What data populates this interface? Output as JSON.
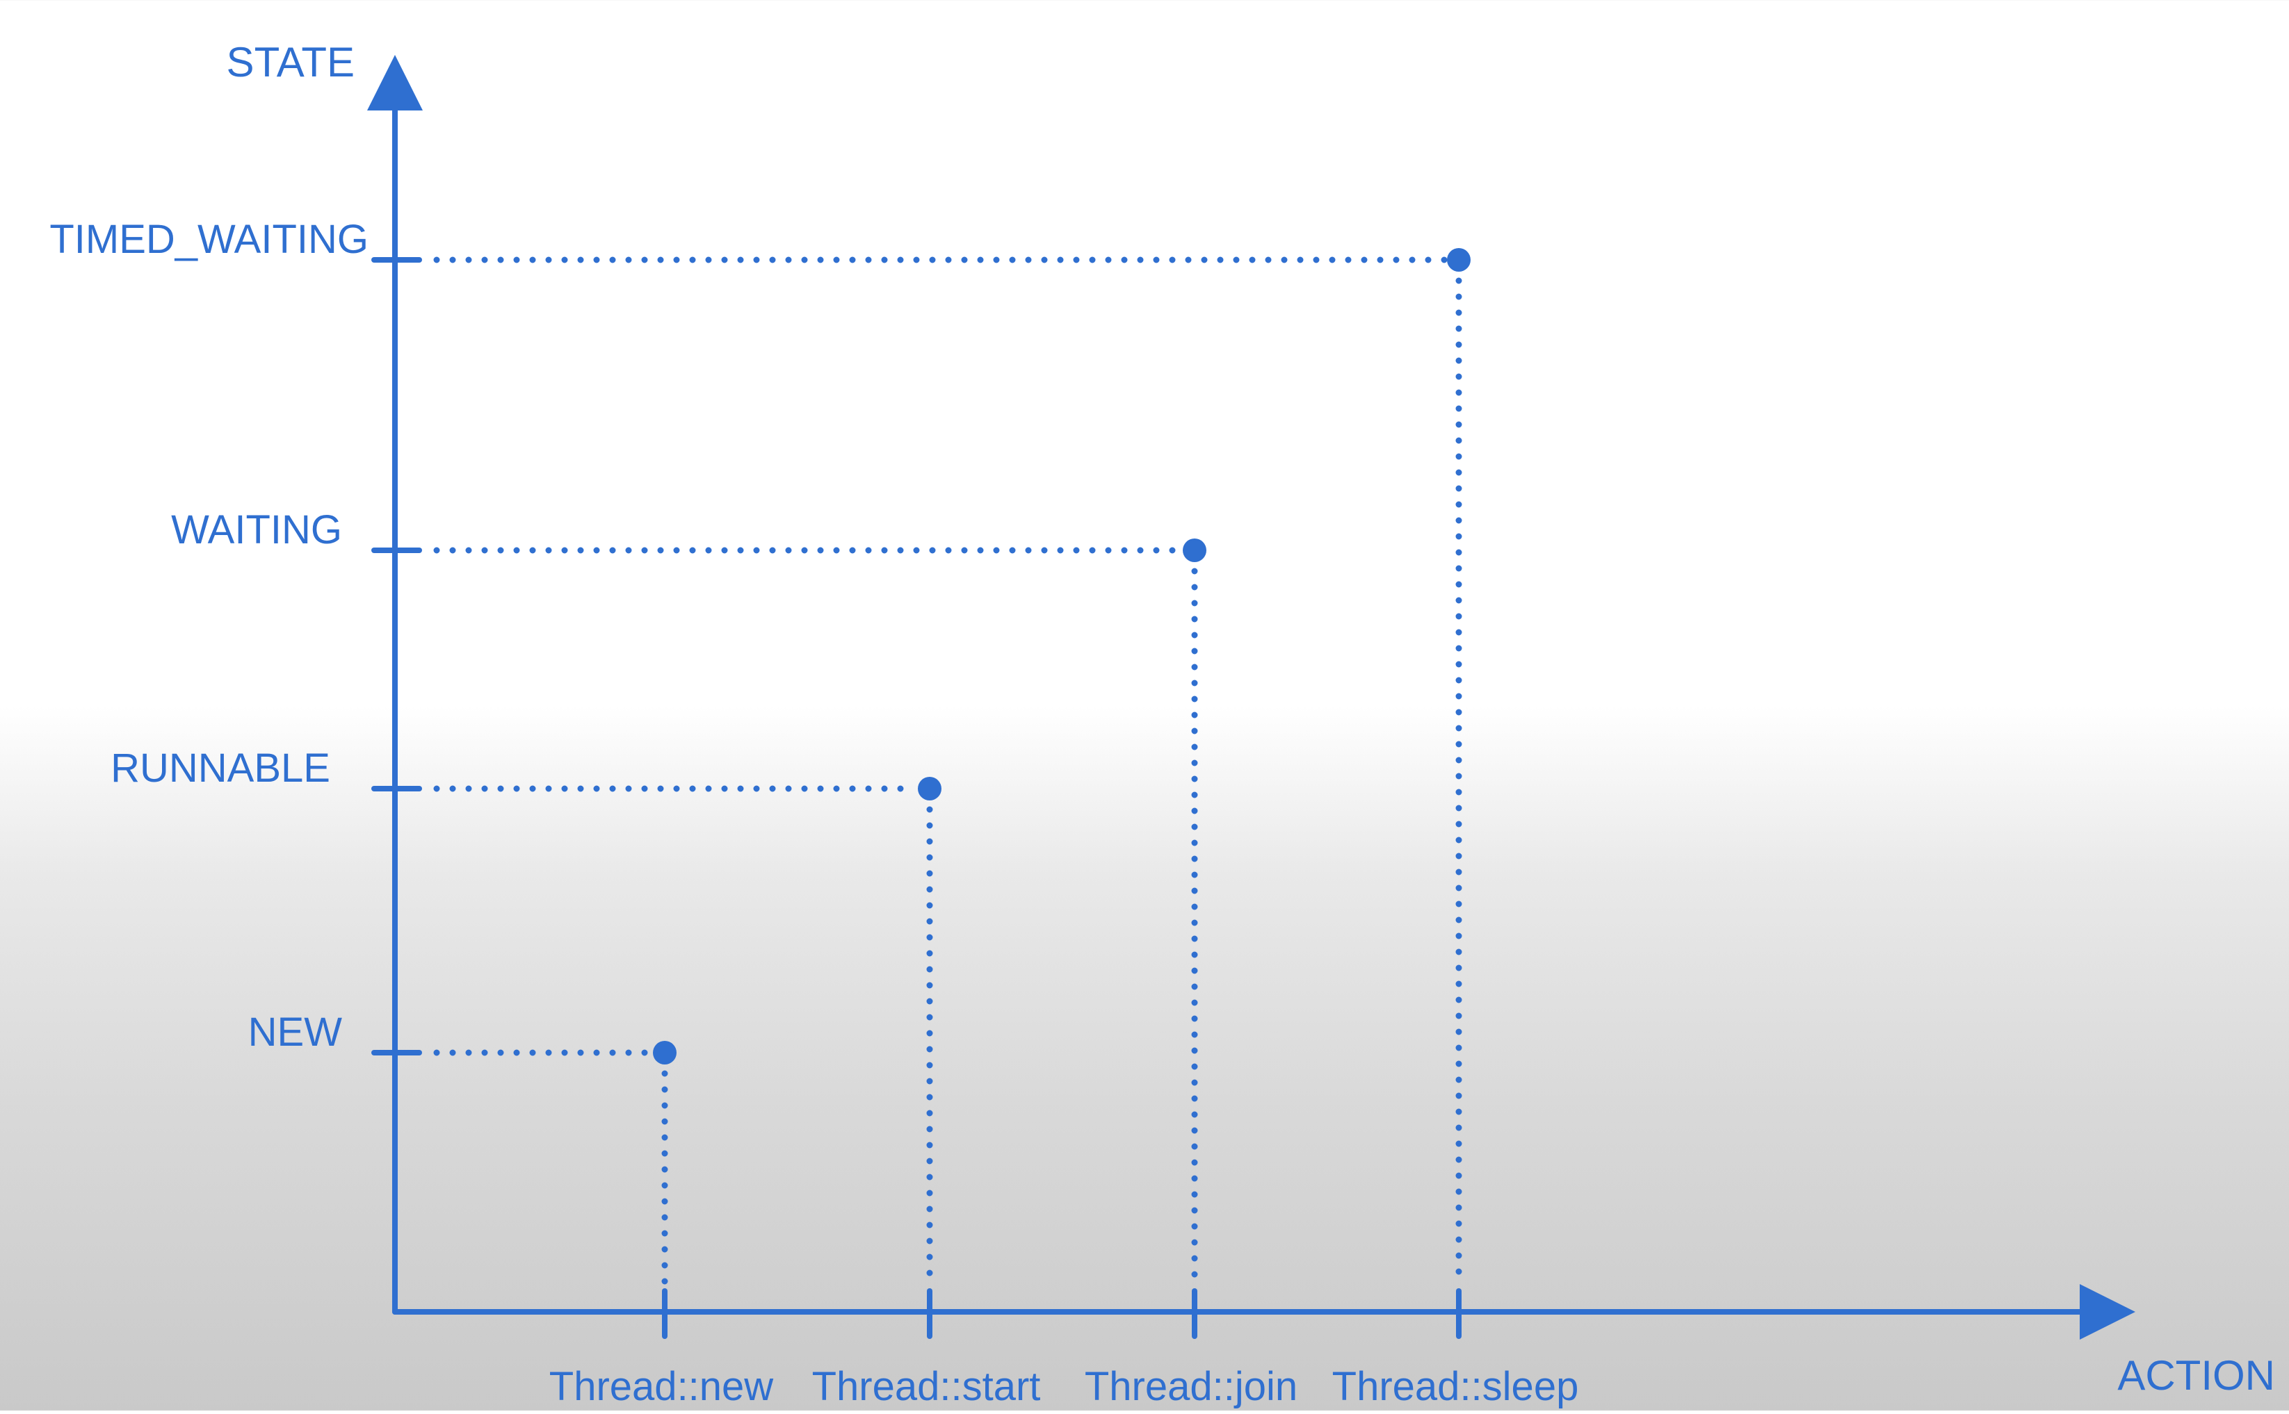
{
  "chart_data": {
    "type": "scatter",
    "x_axis_label": "ACTION",
    "y_axis_label": "STATE",
    "x_categories": [
      "Thread::new",
      "Thread::start",
      "Thread::join",
      "Thread::sleep"
    ],
    "y_categories": [
      "NEW",
      "RUNNABLE",
      "WAITING",
      "TIMED_WAITING"
    ],
    "points": [
      {
        "x": "Thread::new",
        "y": "NEW"
      },
      {
        "x": "Thread::start",
        "y": "RUNNABLE"
      },
      {
        "x": "Thread::join",
        "y": "WAITING"
      },
      {
        "x": "Thread::sleep",
        "y": "TIMED_WAITING"
      }
    ],
    "grid": false,
    "legend": "none",
    "colors": {
      "accent": "#2f6fd0"
    }
  }
}
